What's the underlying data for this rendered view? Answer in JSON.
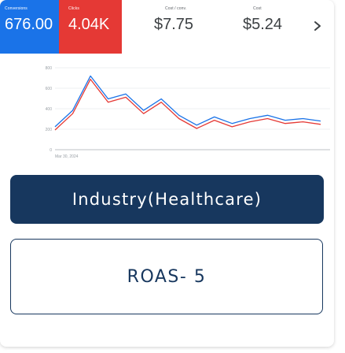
{
  "metrics": [
    {
      "label": "Conversions",
      "value": "676.00",
      "color": "#1a73e8"
    },
    {
      "label": "Clicks",
      "value": "4.04K",
      "color": "#e53935"
    },
    {
      "label": "Cost / conv.",
      "value": "$7.75"
    },
    {
      "label": "Cost",
      "value": "$5.24"
    }
  ],
  "next_icon": "chevron-right-icon",
  "chart": {
    "y_tick_labels": [
      "800",
      "600",
      "400",
      "200",
      "0"
    ],
    "x_tick_labels": [
      "Mar 30, 2024"
    ],
    "series": [
      {
        "color": "#1a73e8",
        "values": [
          0.28,
          0.48,
          0.9,
          0.62,
          0.68,
          0.48,
          0.62,
          0.42,
          0.3,
          0.4,
          0.32,
          0.38,
          0.42,
          0.36,
          0.38,
          0.35
        ]
      },
      {
        "color": "#e53935",
        "values": [
          0.24,
          0.44,
          0.86,
          0.58,
          0.64,
          0.44,
          0.58,
          0.38,
          0.26,
          0.36,
          0.28,
          0.34,
          0.38,
          0.32,
          0.34,
          0.31
        ]
      }
    ]
  },
  "buttons": {
    "industry": "Industry(Healthcare)",
    "roas": "ROAS- 5"
  },
  "colors": {
    "navy": "#17375e"
  }
}
